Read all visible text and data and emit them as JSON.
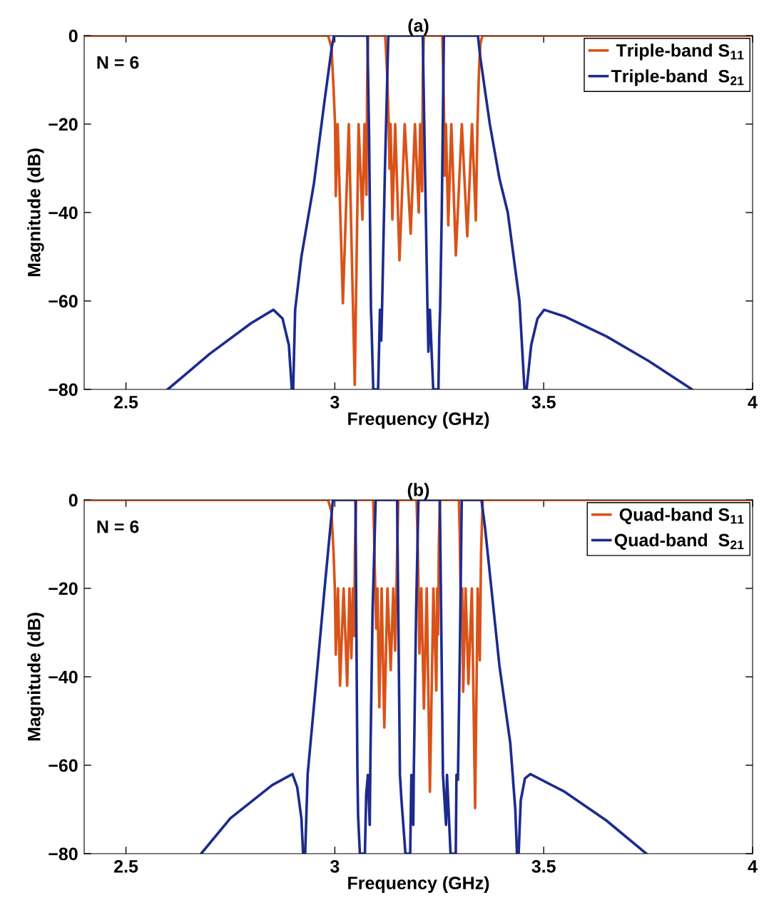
{
  "chart_data": [
    {
      "type": "line",
      "title": "(a)",
      "xlabel": "Frequency (GHz)",
      "ylabel": "Magnitude (dB)",
      "annotations": [
        "N = 6"
      ],
      "xlim": [
        2.4,
        4
      ],
      "xticks": [
        2.5,
        3,
        3.5,
        4
      ],
      "ylim": [
        -80,
        0
      ],
      "yticks": [
        -80,
        -60,
        -40,
        -20,
        0
      ],
      "legend": "top right",
      "series": [
        {
          "name": " Triple-band S$_{11}$",
          "color": "#d95319",
          "x": [
            2.4,
            2.984,
            2.992,
            2.997,
            3.0005,
            3.0023,
            3.0068,
            3.0193,
            3.0335,
            3.0477,
            3.0569,
            3.066,
            3.0711,
            3.0757,
            3.0775,
            3.0796,
            3.1206,
            3.125,
            3.129,
            3.1309,
            3.1335,
            3.1377,
            3.1445,
            3.1548,
            3.1673,
            3.1816,
            3.1918,
            3.2009,
            3.2043,
            3.2089,
            3.2105,
            3.2128,
            3.2572,
            3.2595,
            3.2617,
            3.2628,
            3.266,
            3.2715,
            3.2789,
            3.2897,
            3.304,
            3.317,
            3.3284,
            3.3375,
            3.3415,
            3.345,
            3.3483,
            3.353,
            4.0
          ],
          "values": [
            0,
            0,
            -2.7,
            -12,
            -20,
            -36.3,
            -20,
            -60.5,
            -20,
            -79,
            -20,
            -41.6,
            -20,
            -36,
            -10,
            0,
            0,
            -8,
            -20,
            -30.1,
            -20,
            -41.6,
            -20,
            -50.8,
            -20,
            -44.8,
            -20,
            -40,
            -20,
            -35.2,
            -10,
            0,
            0,
            -8,
            -20,
            -31.7,
            -20,
            -42.9,
            -20,
            -49.7,
            -20,
            -45.4,
            -20,
            -41.8,
            -20,
            -8,
            -2,
            0,
            0
          ]
        },
        {
          "name": "Triple-band  S$_{21}$",
          "color": "#1c2b8f",
          "x": [
            2.6,
            2.7,
            2.8,
            2.853,
            2.875,
            2.89,
            2.897,
            2.9003,
            2.905,
            2.92,
            2.95,
            2.975,
            2.9926,
            2.998,
            3.078,
            3.082,
            3.0865,
            3.088,
            3.092,
            3.1036,
            3.108,
            3.111,
            3.113,
            3.12,
            3.128,
            3.2105,
            3.2145,
            3.2218,
            3.224,
            3.2275,
            3.2355,
            3.248,
            3.25,
            3.252,
            3.256,
            3.261,
            3.3426,
            3.348,
            3.371,
            3.394,
            3.414,
            3.442,
            3.454,
            3.459,
            3.47,
            3.485,
            3.501,
            3.55,
            3.65,
            3.75,
            3.855
          ],
          "values": [
            -80,
            -72,
            -65,
            -62,
            -64,
            -70,
            -80,
            -80,
            -62,
            -50,
            -33.4,
            -15,
            -2.7,
            0,
            0,
            -22.6,
            -61.8,
            -66,
            -80,
            -80,
            -62,
            -69,
            -62,
            -30,
            0,
            0,
            -22.6,
            -61.8,
            -71.5,
            -62,
            -80,
            -80,
            -68,
            -62,
            -40,
            0,
            0,
            -4.8,
            -20,
            -32.3,
            -40,
            -60,
            -80,
            -80,
            -70,
            -64,
            -62,
            -63.5,
            -68,
            -73.5,
            -80
          ]
        }
      ]
    },
    {
      "type": "line",
      "title": "(b)",
      "xlabel": "Frequency (GHz)",
      "ylabel": "Magnitude (dB)",
      "annotations": [
        "N = 6"
      ],
      "xlim": [
        2.4,
        4
      ],
      "xticks": [
        2.5,
        3,
        3.5,
        4
      ],
      "ylim": [
        -80,
        0
      ],
      "yticks": [
        -80,
        -60,
        -40,
        -20,
        0
      ],
      "legend": "top right",
      "series": [
        {
          "name": " Quad-band S$_{11}$",
          "color": "#d95319",
          "x": [
            2.4,
            2.984,
            2.992,
            2.997,
            3.0,
            3.0023,
            3.0075,
            3.0125,
            3.021,
            3.0296,
            3.035,
            3.0396,
            3.043,
            3.0465,
            3.048,
            3.051,
            3.092,
            3.094,
            3.0967,
            3.099,
            3.102,
            3.1064,
            3.112,
            3.1184,
            3.126,
            3.1337,
            3.14,
            3.1445,
            3.1475,
            3.15,
            3.1519,
            3.1957,
            3.198,
            3.2002,
            3.2025,
            3.207,
            3.2132,
            3.22,
            3.2276,
            3.236,
            3.243,
            3.245,
            3.247,
            3.249,
            3.2514,
            3.297,
            3.299,
            3.301,
            3.3028,
            3.305,
            3.3072,
            3.313,
            3.3198,
            3.328,
            3.3358,
            3.342,
            3.3471,
            3.35,
            3.354,
            4.0
          ],
          "values": [
            0,
            0,
            -2.7,
            -12,
            -20,
            -35,
            -20,
            -42,
            -20,
            -42,
            -20,
            -35.8,
            -20,
            -30.8,
            -12,
            0,
            0,
            -8,
            -20,
            -29.1,
            -20,
            -46.9,
            -20,
            -51.5,
            -20,
            -38.5,
            -20,
            -34.1,
            -20,
            -8,
            0,
            0,
            -8,
            -20,
            -34.7,
            -20,
            -47.2,
            -20,
            -66,
            -20,
            -43.1,
            -20,
            -30.5,
            -10,
            0,
            0,
            -8,
            -20,
            -28.9,
            -20,
            -43.4,
            -20,
            -41.6,
            -20,
            -69.7,
            -20,
            -36.3,
            -12,
            0,
            0
          ]
        },
        {
          "name": "Quad-band  S$_{21}$",
          "color": "#1c2b8f",
          "x": [
            2.68,
            2.75,
            2.85,
            2.8986,
            2.91,
            2.92,
            2.924,
            2.929,
            2.935,
            2.95,
            2.9755,
            2.9955,
            3.0494,
            3.054,
            3.0557,
            3.06,
            3.072,
            3.0751,
            3.0791,
            3.0836,
            3.0853,
            3.0904,
            3.0978,
            3.1491,
            3.1559,
            3.1593,
            3.169,
            3.1804,
            3.1832,
            3.1878,
            3.1889,
            3.1946,
            3.2002,
            3.2514,
            3.2588,
            3.2662,
            3.2685,
            3.277,
            3.2895,
            3.2912,
            3.2947,
            3.2998,
            3.3038,
            3.3511,
            3.3596,
            3.3939,
            3.42,
            3.432,
            3.436,
            3.44,
            3.445,
            3.455,
            3.468,
            3.55,
            3.65,
            3.7457
          ],
          "values": [
            -80,
            -72,
            -64.5,
            -62,
            -65,
            -72,
            -80,
            -80,
            -62,
            -46.6,
            -20,
            0,
            0,
            -61.1,
            -71.5,
            -80,
            -80,
            -66.5,
            -62.2,
            -73.5,
            -57.4,
            -25,
            0,
            0,
            -62.2,
            -67.6,
            -80,
            -80,
            -62.2,
            -73.5,
            -62.7,
            -25,
            0,
            0,
            -62.2,
            -73.5,
            -62.2,
            -80,
            -80,
            -62.2,
            -63.3,
            -30.5,
            0,
            0,
            -6.3,
            -37.4,
            -55,
            -70,
            -80,
            -80,
            -68,
            -63,
            -62,
            -66,
            -72.5,
            -80
          ]
        }
      ]
    }
  ]
}
